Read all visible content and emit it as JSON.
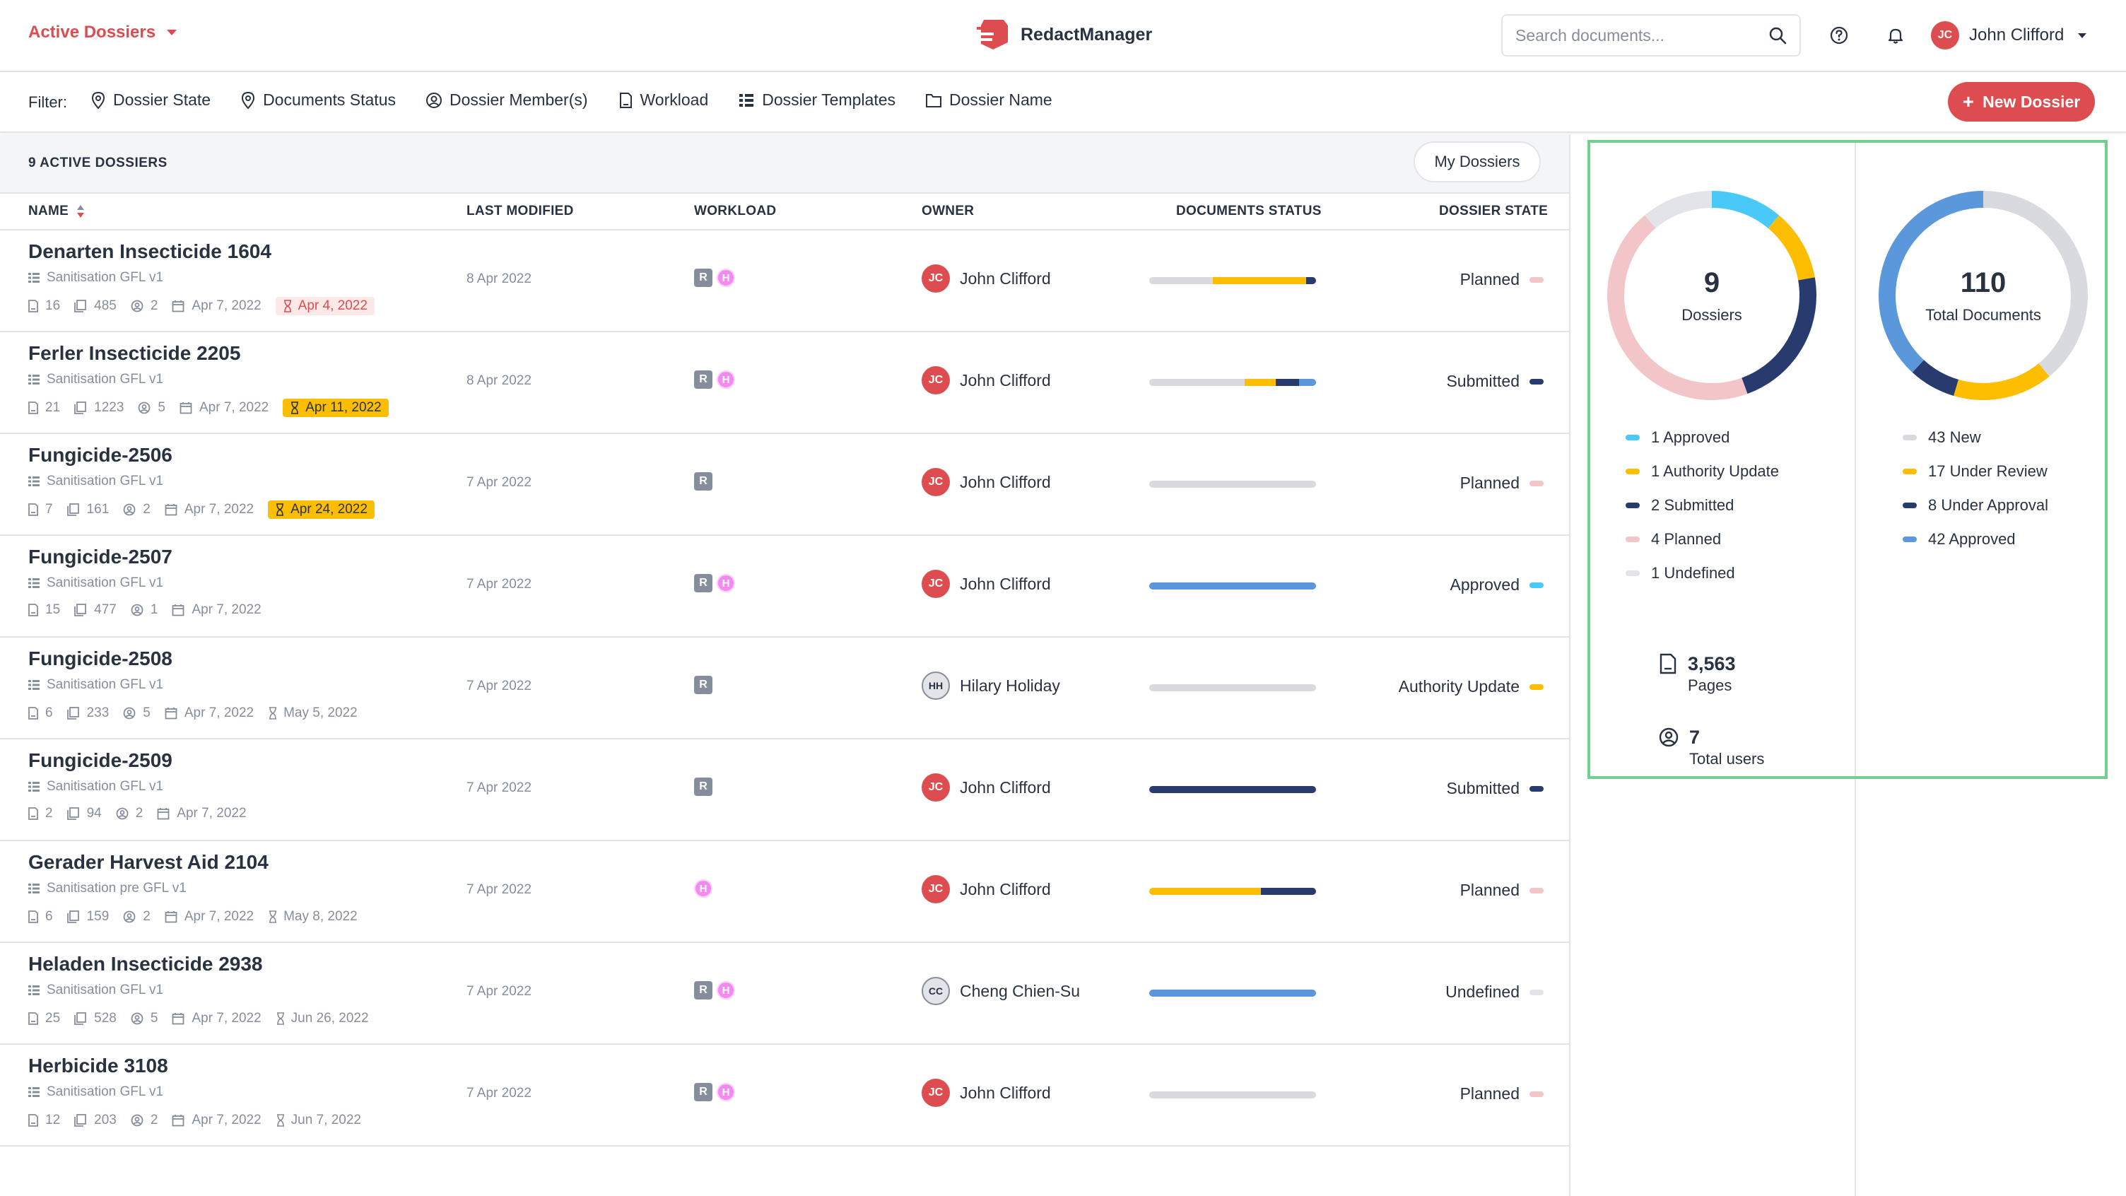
{
  "header": {
    "workspace": "Active Dossiers",
    "app_name": "RedactManager",
    "search_placeholder": "Search documents...",
    "user_initials": "JC",
    "user_name": "John Clifford"
  },
  "filterbar": {
    "label": "Filter:",
    "filters": [
      "Dossier State",
      "Documents Status",
      "Dossier Member(s)",
      "Workload",
      "Dossier Templates",
      "Dossier Name"
    ],
    "new_button": "New Dossier"
  },
  "table": {
    "count_label": "9 ACTIVE DOSSIERS",
    "my_dossiers": "My Dossiers",
    "columns": {
      "name": "NAME",
      "modified": "LAST MODIFIED",
      "workload": "WORKLOAD",
      "owner": "OWNER",
      "docs_status": "DOCUMENTS STATUS",
      "state": "DOSSIER STATE"
    },
    "rows": [
      {
        "name": "Denarten Insecticide 1604",
        "template": "Sanitisation GFL v1",
        "docs": "16",
        "pages": "485",
        "members": "2",
        "created": "Apr 7, 2022",
        "due": "Apr 4, 2022",
        "due_style": "red",
        "modified": "8 Apr 2022",
        "workload_r": "R",
        "workload_h": "H",
        "owner_initials": "JC",
        "owner": "John Clifford",
        "owner_style": "red",
        "status_bar": [
          0.38,
          0.56,
          0.06
        ],
        "state": "Planned"
      },
      {
        "name": "Ferler Insecticide 2205",
        "template": "Sanitisation GFL v1",
        "docs": "21",
        "pages": "1223",
        "members": "5",
        "created": "Apr 7, 2022",
        "due": "Apr 11, 2022",
        "due_style": "yellow",
        "modified": "8 Apr 2022",
        "workload_r": "R",
        "workload_h": "H",
        "owner_initials": "JC",
        "owner": "John Clifford",
        "owner_style": "red",
        "status_bar": [
          0.57,
          0.19,
          0.14,
          0.1
        ],
        "state": "Submitted"
      },
      {
        "name": "Fungicide-2506",
        "template": "Sanitisation GFL v1",
        "docs": "7",
        "pages": "161",
        "members": "2",
        "created": "Apr 7, 2022",
        "due": "Apr 24, 2022",
        "due_style": "yellow",
        "modified": "7 Apr 2022",
        "workload_r": "R",
        "workload_h": "",
        "owner_initials": "JC",
        "owner": "John Clifford",
        "owner_style": "red",
        "status_bar": [
          1.0
        ],
        "state": "Planned"
      },
      {
        "name": "Fungicide-2507",
        "template": "Sanitisation GFL v1",
        "docs": "15",
        "pages": "477",
        "members": "1",
        "created": "Apr 7, 2022",
        "due": "",
        "due_style": "plain",
        "modified": "7 Apr 2022",
        "workload_r": "R",
        "workload_h": "H",
        "owner_initials": "JC",
        "owner": "John Clifford",
        "owner_style": "red",
        "status_bar": [
          1.0
        ],
        "state": "Approved"
      },
      {
        "name": "Fungicide-2508",
        "template": "Sanitisation GFL v1",
        "docs": "6",
        "pages": "233",
        "members": "5",
        "created": "Apr 7, 2022",
        "due": "May 5, 2022",
        "due_style": "plain",
        "modified": "7 Apr 2022",
        "workload_r": "R",
        "workload_h": "",
        "owner_initials": "HH",
        "owner": "Hilary Holiday",
        "owner_style": "grey",
        "status_bar": [
          1.0
        ],
        "state": "Authority Update"
      },
      {
        "name": "Fungicide-2509",
        "template": "Sanitisation GFL v1",
        "docs": "2",
        "pages": "94",
        "members": "2",
        "created": "Apr 7, 2022",
        "due": "",
        "due_style": "plain",
        "modified": "7 Apr 2022",
        "workload_r": "R",
        "workload_h": "",
        "owner_initials": "JC",
        "owner": "John Clifford",
        "owner_style": "red",
        "status_bar": [
          1.0
        ],
        "state": "Submitted"
      },
      {
        "name": "Gerader Harvest Aid 2104",
        "template": "Sanitisation pre GFL v1",
        "docs": "6",
        "pages": "159",
        "members": "2",
        "created": "Apr 7, 2022",
        "due": "May 8, 2022",
        "due_style": "plain",
        "modified": "7 Apr 2022",
        "workload_r": "",
        "workload_h": "H",
        "owner_initials": "JC",
        "owner": "John Clifford",
        "owner_style": "red",
        "status_bar": [
          0.67,
          0.33
        ],
        "state": "Planned"
      },
      {
        "name": "Heladen Insecticide 2938",
        "template": "Sanitisation GFL v1",
        "docs": "25",
        "pages": "528",
        "members": "5",
        "created": "Apr 7, 2022",
        "due": "Jun 26, 2022",
        "due_style": "plain",
        "modified": "7 Apr 2022",
        "workload_r": "R",
        "workload_h": "H",
        "owner_initials": "CC",
        "owner": "Cheng Chien-Su",
        "owner_style": "grey",
        "status_bar": [
          1.0
        ],
        "state": "Undefined"
      },
      {
        "name": "Herbicide 3108",
        "template": "Sanitisation GFL v1",
        "docs": "12",
        "pages": "203",
        "members": "2",
        "created": "Apr 7, 2022",
        "due": "Jun 7, 2022",
        "due_style": "plain",
        "modified": "7 Apr 2022",
        "workload_r": "R",
        "workload_h": "H",
        "owner_initials": "JC",
        "owner": "John Clifford",
        "owner_style": "red",
        "status_bar": [
          1.0
        ],
        "state": "Planned"
      }
    ]
  },
  "status_bar_colors": [
    [
      "#d8dadf",
      "#fdbd00",
      "#283b6f"
    ],
    [
      "#d8dadf",
      "#fdbd00",
      "#283b6f",
      "#5b97db"
    ],
    [
      "#d8dadf"
    ],
    [
      "#5b97db"
    ],
    [
      "#d8dadf"
    ],
    [
      "#283b6f"
    ],
    [
      "#fdbd00",
      "#283b6f"
    ],
    [
      "#5b97db"
    ],
    [
      "#d8dadf"
    ]
  ],
  "state_colors": {
    "Planned": "#f2c6c8",
    "Submitted": "#283b6f",
    "Approved": "#48c9f7",
    "Authority Update": "#fdbd00",
    "Undefined": "#e2e4e9"
  },
  "stats": {
    "dossiers": {
      "total": "9",
      "label": "Dossiers",
      "legend": [
        {
          "label": "1 Approved",
          "value": 1,
          "color": "#48c9f7"
        },
        {
          "label": "1 Authority Update",
          "value": 1,
          "color": "#fdbd00"
        },
        {
          "label": "2 Submitted",
          "value": 2,
          "color": "#283b6f"
        },
        {
          "label": "4 Planned",
          "value": 4,
          "color": "#f2c6c8"
        },
        {
          "label": "1 Undefined",
          "value": 1,
          "color": "#e2e4e9"
        }
      ]
    },
    "documents": {
      "total": "110",
      "label": "Total Documents",
      "legend": [
        {
          "label": "43 New",
          "value": 43,
          "color": "#d8dadf"
        },
        {
          "label": "17 Under Review",
          "value": 17,
          "color": "#fdbd00"
        },
        {
          "label": "8 Under Approval",
          "value": 8,
          "color": "#283b6f"
        },
        {
          "label": "42 Approved",
          "value": 42,
          "color": "#5b97db"
        }
      ]
    },
    "pages_value": "3,563",
    "pages_label": "Pages",
    "users_value": "7",
    "users_label": "Total users"
  }
}
